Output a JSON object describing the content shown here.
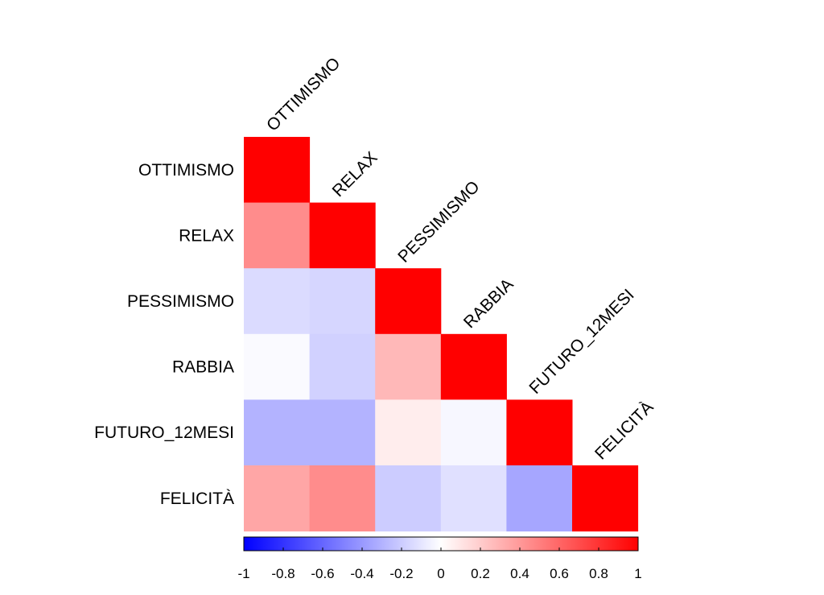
{
  "chart_data": {
    "type": "heatmap",
    "variables": [
      "OTTIMISMO",
      "RELAX",
      "PESSIMISMO",
      "RABBIA",
      "FUTURO_12MESI",
      "FELICITÀ"
    ],
    "matrix_type": "lower",
    "values": [
      [
        1.0
      ],
      [
        0.45,
        1.0
      ],
      [
        -0.14,
        -0.16,
        1.0
      ],
      [
        -0.02,
        -0.18,
        0.28,
        1.0
      ],
      [
        -0.3,
        -0.3,
        0.07,
        -0.03,
        1.0
      ],
      [
        0.35,
        0.45,
        -0.2,
        -0.12,
        -0.35,
        1.0
      ]
    ],
    "colorbar": {
      "min": -1,
      "max": 1,
      "ticks": [
        "-1",
        "-0.8",
        "-0.6",
        "-0.4",
        "-0.2",
        "0",
        "0.2",
        "0.4",
        "0.6",
        "0.8",
        "1"
      ],
      "colors": {
        "low": "#0000ff",
        "mid": "#ffffff",
        "high": "#ff0000"
      }
    }
  }
}
